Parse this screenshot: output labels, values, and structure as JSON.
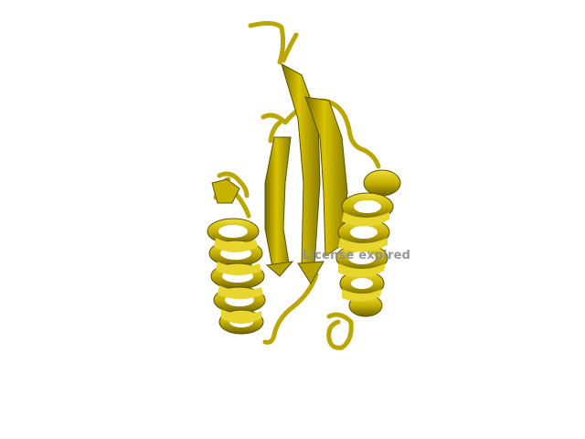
{
  "viewer": {
    "watermark_text": "License expired",
    "background_color": "#ffffff",
    "ribbon_color": "#c8b400",
    "ribbon_shadow_color": "#6b5f00",
    "ribbon_highlight_color": "#eedc3a",
    "watermark_color": "#8c8c8c"
  },
  "structure": {
    "representation": "cartoon",
    "elements": [
      "alpha-helix-left",
      "beta-sheet-center",
      "alpha-helix-right",
      "loops"
    ]
  }
}
